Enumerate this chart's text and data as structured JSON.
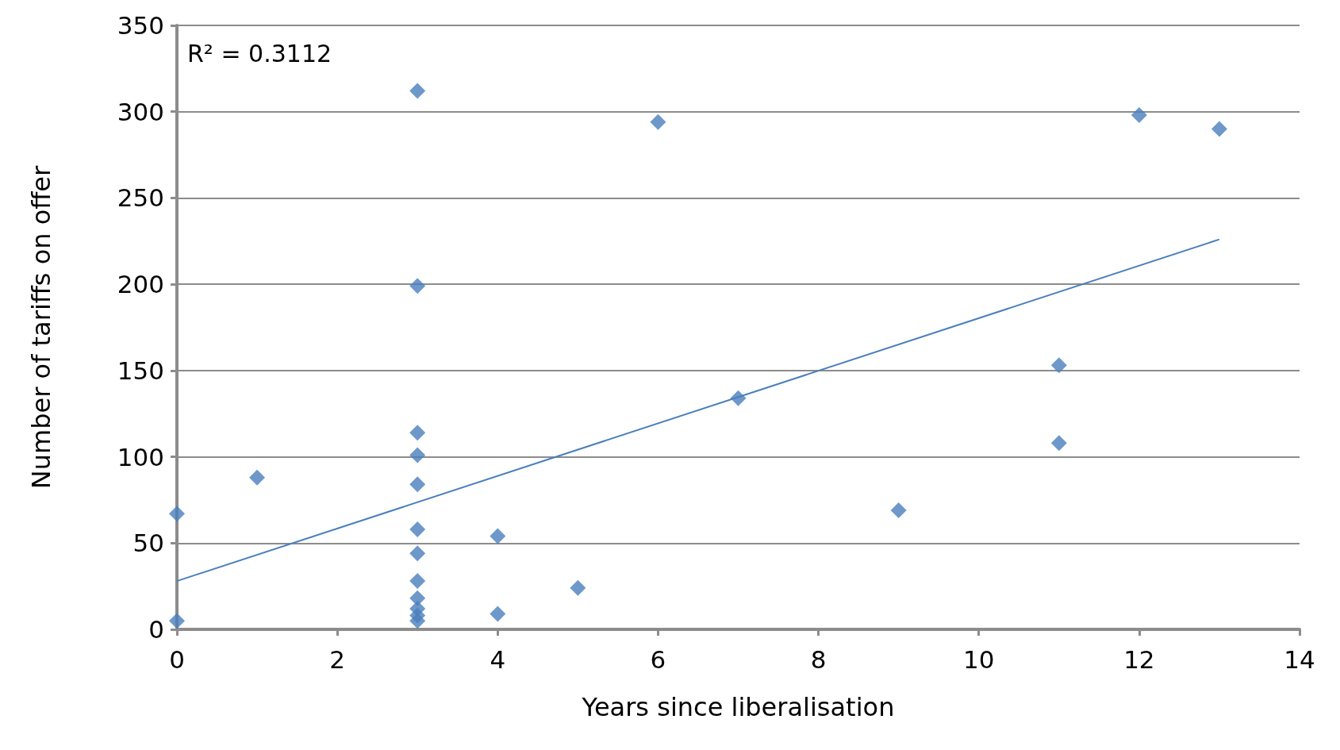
{
  "chart_data": {
    "type": "scatter",
    "xlabel": "Years since liberalisation",
    "ylabel": "Number of tariffs on offer",
    "annotations": [
      "R² = 0.3112"
    ],
    "xlim": [
      0,
      14
    ],
    "xticks": [
      0,
      2,
      4,
      6,
      8,
      10,
      12,
      14
    ],
    "ylim": [
      0,
      350
    ],
    "yticks": [
      0,
      50,
      100,
      150,
      200,
      250,
      300,
      350
    ],
    "grid": "y",
    "series": [
      {
        "marker": "diamond",
        "color": "#4a7ebb",
        "x": [
          0,
          0,
          1,
          3,
          3,
          3,
          3,
          3,
          3,
          3,
          3,
          3,
          3,
          3,
          3,
          4,
          4,
          5,
          6,
          7,
          9,
          11,
          11,
          12,
          13
        ],
        "values": [
          67,
          5,
          88,
          312,
          199,
          114,
          101,
          84,
          58,
          44,
          28,
          18,
          12,
          8,
          5,
          54,
          9,
          24,
          294,
          134,
          69,
          153,
          108,
          298,
          290
        ]
      },
      {
        "type": "line",
        "marker": "none",
        "line_style": "solid",
        "color": "#4a7ebb",
        "x": [
          0,
          13
        ],
        "values": [
          28,
          226
        ]
      }
    ]
  }
}
